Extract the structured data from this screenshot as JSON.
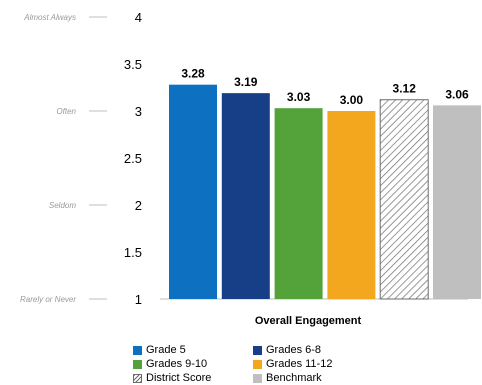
{
  "chart_data": {
    "type": "bar",
    "categories": [
      "Overall Engagement"
    ],
    "xlabel": "Overall Engagement",
    "ylabel": "",
    "ylim": [
      1,
      4
    ],
    "yticks": [
      1,
      1.5,
      2,
      2.5,
      3,
      3.5,
      4
    ],
    "ytick_labels": [
      "1",
      "1.5",
      "2",
      "2.5",
      "3",
      "3.5",
      "4"
    ],
    "scale_labels": [
      {
        "value": 4,
        "text": "Almost Always"
      },
      {
        "value": 3,
        "text": "Often"
      },
      {
        "value": 2,
        "text": "Seldom"
      },
      {
        "value": 1,
        "text": "Rarely or Never"
      }
    ],
    "grid": false,
    "legend_position": "bottom",
    "series": [
      {
        "name": "Grade 5",
        "values": [
          3.28
        ],
        "label": "3.28",
        "color": "#0e70c0",
        "pattern": "solid"
      },
      {
        "name": "Grades 6-8",
        "values": [
          3.19
        ],
        "label": "3.19",
        "color": "#163f87",
        "pattern": "solid"
      },
      {
        "name": "Grades 9-10",
        "values": [
          3.03
        ],
        "label": "3.03",
        "color": "#53a33a",
        "pattern": "solid"
      },
      {
        "name": "Grades 11-12",
        "values": [
          3.0
        ],
        "label": "3.00",
        "color": "#f2a71e",
        "pattern": "solid"
      },
      {
        "name": "District Score",
        "values": [
          3.12
        ],
        "label": "3.12",
        "color": "#6d6d6d",
        "pattern": "hatch"
      },
      {
        "name": "Benchmark",
        "values": [
          3.06
        ],
        "label": "3.06",
        "color": "#bfbfbf",
        "pattern": "solid"
      }
    ]
  }
}
